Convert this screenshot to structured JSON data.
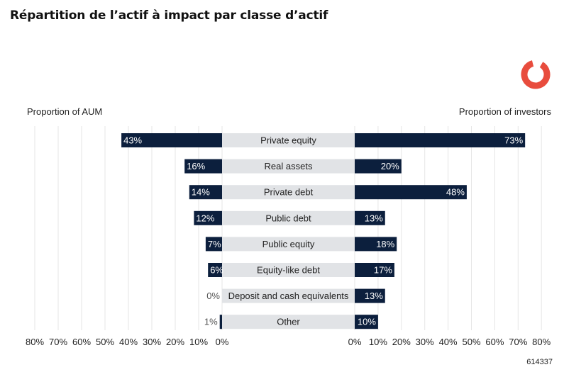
{
  "title": "Répartition de l’actif à impact par classe d’actif",
  "left_axis_title": "Proportion of AUM",
  "right_axis_title": "Proportion of investors",
  "footer_id": "614337",
  "logo_icon": "ring-logo-icon",
  "colors": {
    "bar": "#0c1f3d",
    "category_band": "#e1e3e6",
    "grid": "#e6e6e6",
    "text_dark": "#222222",
    "logo": "#e84c3d"
  },
  "chart_data": {
    "type": "bar",
    "orientation": "horizontal-butterfly",
    "categories": [
      "Private equity",
      "Real assets",
      "Private debt",
      "Public debt",
      "Public equity",
      "Equity-like debt",
      "Deposit and cash equivalents",
      "Other"
    ],
    "series": [
      {
        "name": "Proportion of AUM",
        "side": "left",
        "values": [
          43,
          16,
          14,
          12,
          7,
          6,
          0,
          1
        ],
        "labels": [
          "43%",
          "16%",
          "14%",
          "12%",
          "7%",
          "6%",
          "0%",
          "1%"
        ]
      },
      {
        "name": "Proportion of investors",
        "side": "right",
        "values": [
          73,
          20,
          48,
          13,
          18,
          17,
          13,
          10
        ],
        "labels": [
          "73%",
          "20%",
          "48%",
          "13%",
          "18%",
          "17%",
          "13%",
          "10%"
        ]
      }
    ],
    "xlim": [
      0,
      80
    ],
    "left_ticks": [
      "80%",
      "70%",
      "60%",
      "50%",
      "40%",
      "30%",
      "20%",
      "10%",
      "0%"
    ],
    "right_ticks": [
      "0%",
      "10%",
      "20%",
      "30%",
      "40%",
      "50%",
      "60%",
      "70%",
      "80%"
    ],
    "grid": true
  }
}
